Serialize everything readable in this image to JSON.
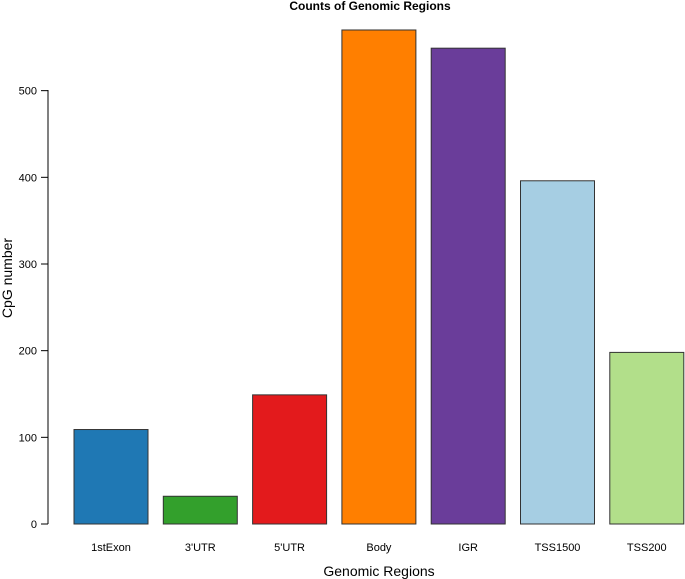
{
  "chart_data": {
    "type": "bar",
    "title": "Counts of Genomic Regions",
    "xlabel": "Genomic Regions",
    "ylabel": "CpG number",
    "categories": [
      "1stExon",
      "3'UTR",
      "5'UTR",
      "Body",
      "IGR",
      "TSS1500",
      "TSS200"
    ],
    "values": [
      109,
      32,
      149,
      570,
      549,
      396,
      198
    ],
    "colors": [
      "#1f78b4",
      "#33a02c",
      "#e31a1c",
      "#ff7f00",
      "#6a3d9a",
      "#a6cee3",
      "#b2df8a"
    ],
    "yticks": [
      0,
      100,
      200,
      300,
      400,
      500
    ],
    "ylim": [
      0,
      580
    ],
    "grid": false,
    "legend": "none"
  }
}
